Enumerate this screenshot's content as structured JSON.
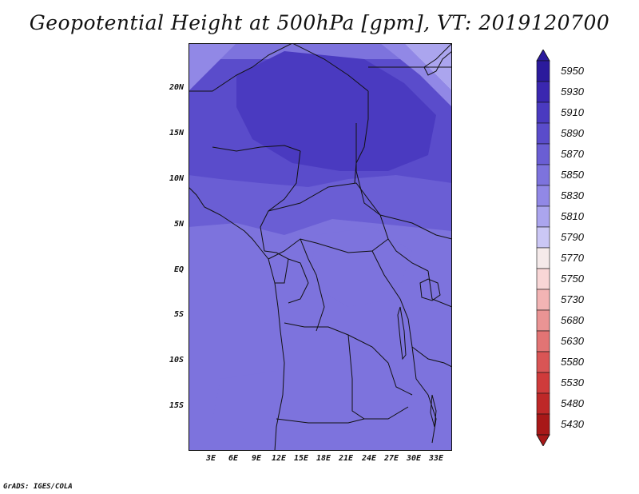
{
  "title": "Geopotential Height at 500hPa [gpm], VT: 2019120700",
  "credit": "GrADS: IGES/COLA",
  "lat_labels": [
    "20N",
    "15N",
    "10N",
    "5N",
    "EQ",
    "5S",
    "10S",
    "15S"
  ],
  "lon_labels": [
    "3E",
    "6E",
    "9E",
    "12E",
    "15E",
    "18E",
    "21E",
    "24E",
    "27E",
    "30E",
    "33E"
  ],
  "colorbar": {
    "levels": [
      "5950",
      "5930",
      "5910",
      "5890",
      "5870",
      "5850",
      "5830",
      "5810",
      "5790",
      "5770",
      "5750",
      "5730",
      "5680",
      "5630",
      "5580",
      "5530",
      "5480",
      "5430"
    ],
    "colors": [
      "#2b1a9c",
      "#3a27b0",
      "#4a3ac0",
      "#5a4ccb",
      "#6a5ed4",
      "#7d73dd",
      "#9188e6",
      "#aba5ee",
      "#cbc7f5",
      "#f5eaea",
      "#f8d6d6",
      "#f2b4b4",
      "#ea9494",
      "#e27474",
      "#d95555",
      "#cf3b3b",
      "#be2828",
      "#a81818"
    ]
  },
  "field_colors": {
    "c5910": "#4a3ac0",
    "c5890": "#5a4ccb",
    "c5870": "#6a5ed4",
    "c5850": "#7d73dd",
    "c5830": "#9188e6",
    "c5810": "#aba5ee",
    "border": "#111111"
  }
}
